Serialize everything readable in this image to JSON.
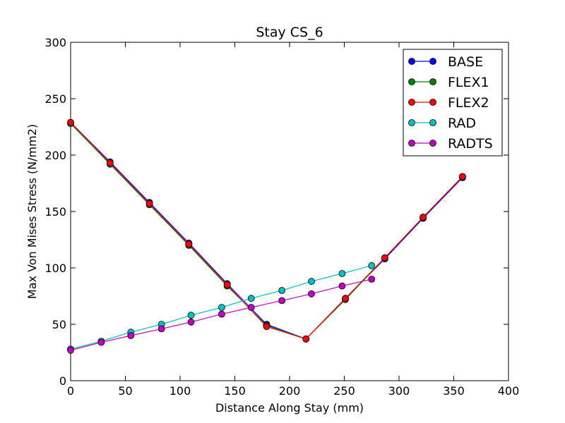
{
  "chart_data": {
    "type": "line",
    "title": "Stay CS_6",
    "xlabel": "Distance Along Stay (mm)",
    "ylabel": "Max Von Mises Stress (N/mm2)",
    "xlim": [
      0,
      400
    ],
    "ylim": [
      0,
      300
    ],
    "xticks": [
      "0",
      "50",
      "100",
      "150",
      "200",
      "250",
      "300",
      "350",
      "400"
    ],
    "yticks": [
      "0",
      "50",
      "100",
      "150",
      "200",
      "250",
      "300"
    ],
    "grid": false,
    "legend_position": "top-right",
    "series": [
      {
        "name": "BASE",
        "color": "#0000ff",
        "x": [
          0,
          36,
          72,
          108,
          143,
          179,
          215,
          251,
          287,
          322,
          358
        ],
        "y": [
          229,
          194,
          158,
          122,
          86,
          50,
          37,
          73,
          108,
          144,
          180
        ]
      },
      {
        "name": "FLEX1",
        "color": "#008000",
        "x": [
          0,
          36,
          72,
          108,
          143,
          179,
          215,
          251,
          287,
          322,
          358
        ],
        "y": [
          228,
          192,
          156,
          120,
          84,
          49,
          37,
          72,
          109,
          145,
          181
        ]
      },
      {
        "name": "FLEX2",
        "color": "#ff0000",
        "x": [
          0,
          36,
          72,
          108,
          143,
          179,
          215,
          251,
          287,
          322,
          358
        ],
        "y": [
          229,
          193,
          157,
          121,
          85,
          48,
          37,
          73,
          109,
          145,
          181
        ]
      },
      {
        "name": "RAD",
        "color": "#00bfbf",
        "x": [
          0,
          28,
          55,
          83,
          110,
          138,
          165,
          193,
          220,
          248,
          275
        ],
        "y": [
          28,
          35,
          43,
          50,
          58,
          65,
          73,
          80,
          88,
          95,
          102
        ]
      },
      {
        "name": "RADTS",
        "color": "#bf00bf",
        "x": [
          0,
          28,
          55,
          83,
          110,
          138,
          165,
          193,
          220,
          248,
          275
        ],
        "y": [
          27,
          34,
          40,
          46,
          52,
          59,
          65,
          71,
          77,
          84,
          90
        ]
      }
    ]
  }
}
